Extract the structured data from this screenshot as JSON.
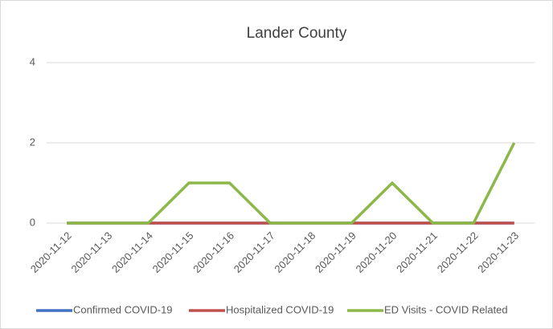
{
  "chart_data": {
    "type": "line",
    "title": "Lander County",
    "categories": [
      "2020-11-12",
      "2020-11-13",
      "2020-11-14",
      "2020-11-15",
      "2020-11-16",
      "2020-11-17",
      "2020-11-18",
      "2020-11-19",
      "2020-11-20",
      "2020-11-21",
      "2020-11-22",
      "2020-11-23"
    ],
    "series": [
      {
        "name": "Confirmed COVID-19",
        "color": "#4472c4",
        "values": [
          0,
          0,
          0,
          0,
          0,
          0,
          0,
          0,
          0,
          0,
          0,
          0
        ]
      },
      {
        "name": "Hospitalized COVID-19",
        "color": "#c0504d",
        "values": [
          0,
          0,
          0,
          0,
          0,
          0,
          0,
          0,
          0,
          0,
          0,
          0
        ]
      },
      {
        "name": "ED Visits - COVID Related",
        "color": "#8cb84a",
        "values": [
          0,
          0,
          0,
          1,
          1,
          0,
          0,
          0,
          1,
          0,
          0,
          2
        ]
      }
    ],
    "ylim": [
      0,
      4
    ],
    "yticks": [
      0,
      2,
      4
    ],
    "grid": true,
    "legend": "bottom"
  }
}
